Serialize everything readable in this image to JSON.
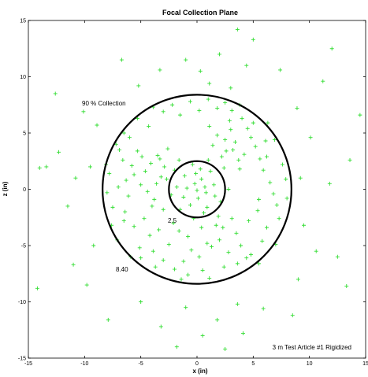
{
  "chart_data": {
    "type": "scatter",
    "title": "Focal Collection Plane",
    "xlabel": "x (in)",
    "ylabel": "z (in)",
    "xlim": [
      -15,
      15
    ],
    "ylim": [
      -15,
      15
    ],
    "xticks": [
      -15,
      -10,
      -5,
      0,
      5,
      10,
      15
    ],
    "yticks": [
      -15,
      -10,
      -5,
      0,
      5,
      10,
      15
    ],
    "tick_labels_x": [
      "-15",
      "-10",
      "-5",
      "0",
      "5",
      "10",
      "15"
    ],
    "tick_labels_y": [
      "-15",
      "-10",
      "-5",
      "0",
      "5",
      "10",
      "15"
    ],
    "grid": false,
    "marker": "+",
    "marker_color": "#33dd33",
    "circle_color": "#000000",
    "circles": [
      {
        "radius": 2.5,
        "label": "2.5"
      },
      {
        "radius": 8.4,
        "label": "8.40"
      }
    ],
    "annotations": {
      "collection": "90 % Collection",
      "article": "3 m Test Article #1 Rigidized"
    },
    "series": [
      {
        "points": [
          [
            -0.2,
            0.5
          ],
          [
            0.8,
            -0.3
          ],
          [
            -1.1,
            1.2
          ],
          [
            0.3,
            1.8
          ],
          [
            1.5,
            0.4
          ],
          [
            -0.6,
            -1.4
          ],
          [
            0.1,
            -0.8
          ],
          [
            -1.8,
            0.2
          ],
          [
            2.1,
            -1.1
          ],
          [
            -0.4,
            2.2
          ],
          [
            1.2,
            1.6
          ],
          [
            -2.3,
            -0.5
          ],
          [
            0.6,
            -2.1
          ],
          [
            -1.5,
            -1.8
          ],
          [
            2.4,
            1.9
          ],
          [
            -0.9,
            0.1
          ],
          [
            0.4,
            0.9
          ],
          [
            1.9,
            -2.4
          ],
          [
            -2.0,
            1.7
          ],
          [
            0.0,
            -0.1
          ],
          [
            -0.3,
            -2.6
          ],
          [
            1.0,
            2.6
          ],
          [
            -2.7,
            0.9
          ],
          [
            2.8,
            0.0
          ],
          [
            -1.2,
            -0.7
          ],
          [
            0.7,
            0.2
          ],
          [
            -0.1,
            1.4
          ],
          [
            1.6,
            -0.6
          ],
          [
            -1.6,
            2.6
          ],
          [
            0.9,
            -1.6
          ],
          [
            -3.2,
            1.1
          ],
          [
            -4.1,
            2.3
          ],
          [
            -5.0,
            0.4
          ],
          [
            -3.8,
            -0.9
          ],
          [
            -4.6,
            1.6
          ],
          [
            -5.8,
            2.1
          ],
          [
            -3.5,
            3.0
          ],
          [
            -6.3,
            0.8
          ],
          [
            -2.9,
            2.0
          ],
          [
            -4.4,
            -0.2
          ],
          [
            -5.3,
            3.4
          ],
          [
            -3.0,
            -1.8
          ],
          [
            -6.1,
            -0.6
          ],
          [
            -4.9,
            2.9
          ],
          [
            -3.6,
            0.5
          ],
          [
            -5.6,
            1.3
          ],
          [
            -2.6,
            3.6
          ],
          [
            -4.0,
            -1.5
          ],
          [
            -6.6,
            2.6
          ],
          [
            -3.3,
            2.7
          ],
          [
            2.6,
            3.4
          ],
          [
            3.4,
            4.2
          ],
          [
            1.8,
            4.8
          ],
          [
            4.2,
            3.1
          ],
          [
            3.0,
            5.3
          ],
          [
            2.2,
            2.9
          ],
          [
            4.8,
            4.6
          ],
          [
            3.7,
            2.6
          ],
          [
            1.4,
            3.9
          ],
          [
            5.2,
            3.8
          ],
          [
            2.9,
            6.1
          ],
          [
            4.5,
            5.4
          ],
          [
            3.2,
            3.5
          ],
          [
            5.6,
            2.7
          ],
          [
            1.1,
            5.6
          ],
          [
            6.1,
            4.3
          ],
          [
            2.5,
            4.4
          ],
          [
            4.0,
            6.3
          ],
          [
            3.8,
            1.8
          ],
          [
            5.0,
            5.9
          ],
          [
            0.4,
            -3.4
          ],
          [
            -0.8,
            -4.2
          ],
          [
            1.3,
            -5.1
          ],
          [
            -1.6,
            -3.7
          ],
          [
            0.2,
            -6.0
          ],
          [
            2.0,
            -4.5
          ],
          [
            -0.5,
            -5.4
          ],
          [
            1.7,
            -3.2
          ],
          [
            -1.2,
            -6.4
          ],
          [
            0.9,
            -4.8
          ],
          [
            3.5,
            -3.9
          ],
          [
            4.6,
            -2.8
          ],
          [
            2.8,
            -5.6
          ],
          [
            5.4,
            -1.9
          ],
          [
            3.9,
            -5.0
          ],
          [
            6.2,
            -3.4
          ],
          [
            4.4,
            -6.1
          ],
          [
            2.3,
            -3.4
          ],
          [
            5.8,
            -4.6
          ],
          [
            3.1,
            -2.6
          ],
          [
            -3.4,
            -3.6
          ],
          [
            -4.7,
            -2.6
          ],
          [
            -2.5,
            -4.9
          ],
          [
            -5.6,
            -3.3
          ],
          [
            -3.9,
            -5.5
          ],
          [
            -6.4,
            -2.0
          ],
          [
            -2.1,
            -3.0
          ],
          [
            -4.2,
            -4.1
          ],
          [
            -5.1,
            -5.2
          ],
          [
            -3.0,
            -6.3
          ],
          [
            6.5,
            0.6
          ],
          [
            7.1,
            -1.4
          ],
          [
            5.9,
            1.7
          ],
          [
            7.6,
            2.2
          ],
          [
            6.8,
            -0.4
          ],
          [
            5.5,
            -0.9
          ],
          [
            7.9,
            0.9
          ],
          [
            6.2,
            2.9
          ],
          [
            7.3,
            -2.6
          ],
          [
            8.0,
            -0.8
          ],
          [
            -7.0,
            0.2
          ],
          [
            -7.5,
            -1.6
          ],
          [
            -6.9,
            3.5
          ],
          [
            -7.8,
            1.4
          ],
          [
            -6.5,
            -2.8
          ],
          [
            -8.0,
            -0.3
          ],
          [
            -7.2,
            4.0
          ],
          [
            -7.6,
            -3.2
          ],
          [
            -6.0,
            4.6
          ],
          [
            -8.1,
            2.2
          ],
          [
            0.2,
            7.0
          ],
          [
            -1.5,
            6.6
          ],
          [
            1.8,
            7.2
          ],
          [
            -3.0,
            6.9
          ],
          [
            3.1,
            7.0
          ],
          [
            -0.6,
            7.8
          ],
          [
            1.0,
            8.0
          ],
          [
            -2.2,
            7.5
          ],
          [
            2.5,
            7.7
          ],
          [
            -4.3,
            5.6
          ],
          [
            0.5,
            -7.2
          ],
          [
            -2.0,
            -7.1
          ],
          [
            2.4,
            -6.9
          ],
          [
            -3.7,
            -6.9
          ],
          [
            1.1,
            -7.9
          ],
          [
            -0.8,
            -7.6
          ],
          [
            3.6,
            -6.6
          ],
          [
            -5.0,
            -6.1
          ],
          [
            4.8,
            -5.8
          ],
          [
            -1.4,
            -8.0
          ],
          [
            3.8,
            7.5
          ],
          [
            6.3,
            5.9
          ],
          [
            -5.3,
            6.3
          ],
          [
            -6.5,
            5.0
          ],
          [
            6.9,
            4.4
          ],
          [
            -5.9,
            -6.0
          ],
          [
            7.0,
            -4.9
          ],
          [
            5.5,
            -6.6
          ],
          [
            -7.1,
            -4.5
          ],
          [
            -3.9,
            7.3
          ],
          [
            9.2,
            1.0
          ],
          [
            10.1,
            4.6
          ],
          [
            11.8,
            0.5
          ],
          [
            9.5,
            -3.2
          ],
          [
            12.5,
            -6.0
          ],
          [
            10.6,
            -5.5
          ],
          [
            8.9,
            7.2
          ],
          [
            11.2,
            9.6
          ],
          [
            13.6,
            2.6
          ],
          [
            9.0,
            -8.0
          ],
          [
            -9.5,
            2.0
          ],
          [
            -10.8,
            1.0
          ],
          [
            -11.5,
            -1.5
          ],
          [
            -9.2,
            -5.0
          ],
          [
            -12.3,
            3.3
          ],
          [
            -10.1,
            6.9
          ],
          [
            -13.4,
            2.0
          ],
          [
            -9.8,
            -8.5
          ],
          [
            -11.0,
            -6.7
          ],
          [
            -8.9,
            5.7
          ],
          [
            0.3,
            10.5
          ],
          [
            2.0,
            12.0
          ],
          [
            3.6,
            14.2
          ],
          [
            -1.0,
            11.5
          ],
          [
            4.4,
            11.0
          ],
          [
            -3.3,
            10.6
          ],
          [
            5.0,
            13.3
          ],
          [
            1.1,
            9.4
          ],
          [
            -5.2,
            9.2
          ],
          [
            3.0,
            9.0
          ],
          [
            -1.0,
            -10.5
          ],
          [
            1.8,
            -11.6
          ],
          [
            -3.2,
            -12.2
          ],
          [
            3.6,
            -10.2
          ],
          [
            0.5,
            -13.0
          ],
          [
            -5.0,
            -10.0
          ],
          [
            2.5,
            -14.2
          ],
          [
            5.9,
            -10.6
          ],
          [
            -1.8,
            -14.0
          ],
          [
            4.1,
            -12.8
          ],
          [
            14.5,
            6.6
          ],
          [
            13.3,
            -8.6
          ],
          [
            -14.2,
            -8.8
          ],
          [
            -12.6,
            8.5
          ],
          [
            7.4,
            10.6
          ],
          [
            -7.9,
            -11.6
          ],
          [
            8.5,
            -11.2
          ],
          [
            -6.7,
            11.5
          ],
          [
            12.0,
            12.5
          ],
          [
            -14.0,
            1.9
          ]
        ]
      }
    ]
  }
}
